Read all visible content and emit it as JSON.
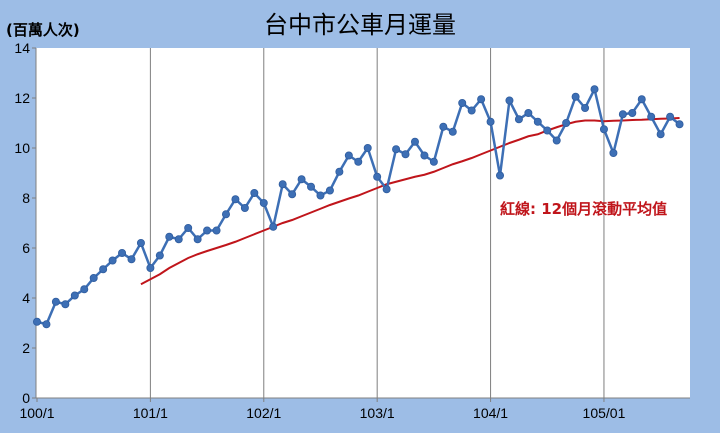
{
  "chart_data": {
    "type": "line",
    "title": "台中市公車月運量",
    "unit_label": "(百萬人次)",
    "annotation": "紅線: 12個月滾動平均值",
    "x_tick_labels": [
      "100/1",
      "101/1",
      "102/1",
      "103/1",
      "104/1",
      "105/01"
    ],
    "ylim": [
      0,
      14
    ],
    "y_ticks": [
      0,
      2,
      4,
      6,
      8,
      10,
      12,
      14
    ],
    "grid": "vertical lines at each year boundary",
    "series": [
      {
        "color": "#3d6fb5",
        "marker": "circle",
        "start_month": "100/1",
        "values": [
          3.05,
          2.95,
          3.85,
          3.75,
          4.1,
          4.35,
          4.8,
          5.15,
          5.5,
          5.8,
          5.55,
          6.2,
          5.2,
          5.7,
          6.45,
          6.35,
          6.8,
          6.35,
          6.7,
          6.7,
          7.35,
          7.95,
          7.6,
          8.2,
          7.8,
          6.85,
          8.55,
          8.15,
          8.75,
          8.45,
          8.1,
          8.3,
          9.05,
          9.7,
          9.45,
          10.0,
          8.85,
          8.35,
          9.95,
          9.75,
          10.25,
          9.7,
          9.45,
          10.85,
          10.65,
          11.8,
          11.5,
          11.95,
          11.05,
          8.9,
          11.9,
          11.15,
          11.4,
          11.05,
          10.7,
          10.3,
          11.0,
          12.05,
          11.6,
          12.35,
          10.75,
          9.8,
          11.35,
          11.4,
          11.95,
          11.25,
          10.55,
          11.25,
          10.95
        ]
      },
      {
        "color": "#c0151b",
        "type": "line",
        "start_month": "100/12",
        "values": [
          4.55,
          4.75,
          4.95,
          5.2,
          5.4,
          5.6,
          5.75,
          5.88,
          6.0,
          6.12,
          6.25,
          6.4,
          6.55,
          6.7,
          6.85,
          7.0,
          7.12,
          7.27,
          7.42,
          7.57,
          7.72,
          7.85,
          7.98,
          8.1,
          8.25,
          8.4,
          8.55,
          8.65,
          8.75,
          8.85,
          8.93,
          9.05,
          9.2,
          9.35,
          9.47,
          9.6,
          9.75,
          9.9,
          10.05,
          10.2,
          10.33,
          10.47,
          10.55,
          10.7,
          10.83,
          10.95,
          11.05,
          11.1,
          11.1,
          11.07,
          11.09,
          11.1,
          11.12,
          11.13,
          11.15,
          11.17,
          11.18,
          11.2
        ]
      }
    ]
  }
}
